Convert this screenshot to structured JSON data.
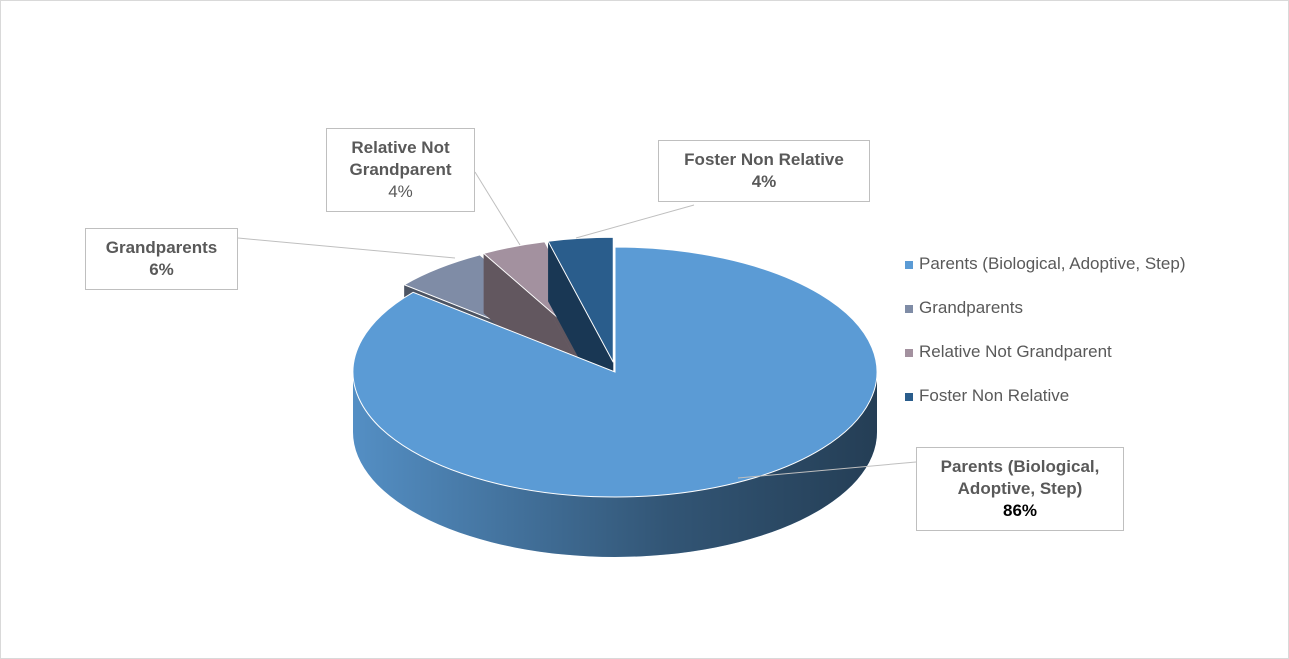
{
  "chart_data": {
    "type": "pie",
    "categories": [
      "Parents (Biological, Adoptive, Step)",
      "Grandparents",
      "Relative Not Grandparent",
      "Foster Non Relative"
    ],
    "values": [
      86,
      6,
      4,
      4
    ],
    "value_labels": [
      "86%",
      "6%",
      "4%",
      "4%"
    ],
    "colors": [
      "#5b9bd5",
      "#7f8ca6",
      "#a3919f",
      "#2a5d8c"
    ],
    "legend": "right"
  }
}
